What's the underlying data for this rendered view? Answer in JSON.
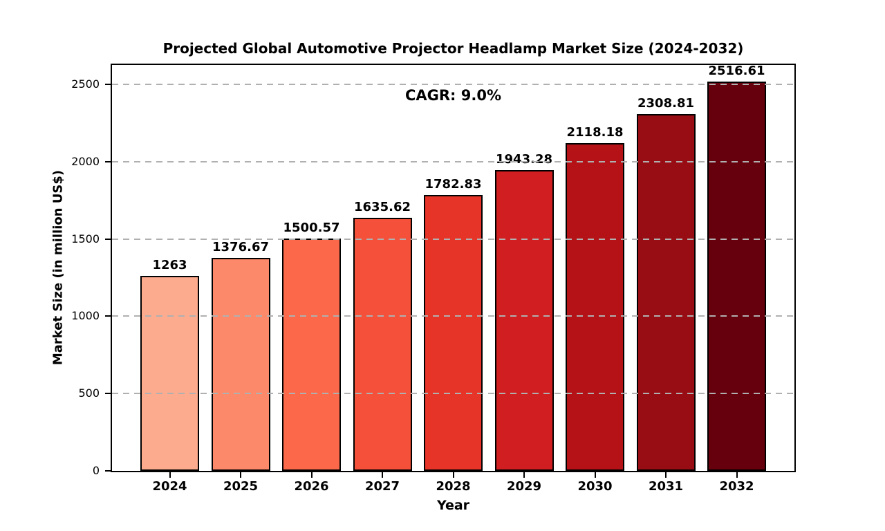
{
  "chart_data": {
    "type": "bar",
    "title": "Projected Global Automotive Projector Headlamp Market Size (2024-2032)",
    "xlabel": "Year",
    "ylabel": "Market Size (in million US$)",
    "annotation": "CAGR: 9.0%",
    "categories": [
      "2024",
      "2025",
      "2026",
      "2027",
      "2028",
      "2029",
      "2030",
      "2031",
      "2032"
    ],
    "values": [
      1263,
      1376.67,
      1500.57,
      1635.62,
      1782.83,
      1943.28,
      2118.18,
      2308.81,
      2516.61
    ],
    "value_labels": [
      "1263",
      "1376.67",
      "1500.57",
      "1635.62",
      "1782.83",
      "1943.28",
      "2118.18",
      "2308.81",
      "2516.61"
    ],
    "bar_colors": [
      "#fcab8f",
      "#fc8a6a",
      "#fb694a",
      "#f4503a",
      "#e73428",
      "#d11e20",
      "#b41217",
      "#980c13",
      "#67000d"
    ],
    "bar_edge_color": "#000000",
    "yticks": [
      0,
      500,
      1000,
      1500,
      2000,
      2500
    ],
    "ylim": [
      0,
      2625
    ],
    "grid": "horizontal-dashed",
    "grid_color": "#b0b0b0",
    "background_color": "#ffffff",
    "legend": "none"
  }
}
